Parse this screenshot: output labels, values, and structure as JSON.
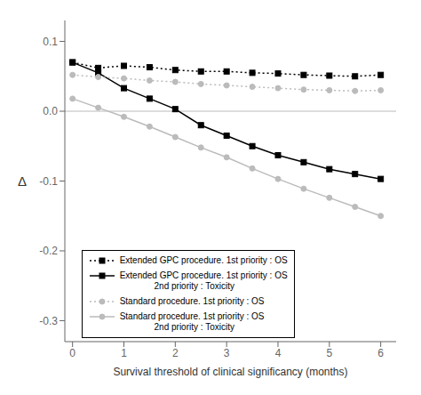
{
  "chart_data": {
    "type": "line",
    "xlabel": "Survival threshold of clinical significancy (months)",
    "ylabel": "Δ",
    "x": [
      0,
      0.5,
      1,
      1.5,
      2,
      2.5,
      3,
      3.5,
      4,
      4.5,
      5,
      5.5,
      6
    ],
    "series": [
      {
        "name": "Extended GPC procedure. 1st priority : OS",
        "color": "black",
        "marker": "square",
        "line_style": "dotted",
        "values": [
          0.07,
          0.062,
          0.065,
          0.063,
          0.059,
          0.057,
          0.057,
          0.055,
          0.054,
          0.052,
          0.051,
          0.05,
          0.052
        ]
      },
      {
        "name": "Extended GPC procedure. 1st priority : OS\n              2nd priority : Toxicity",
        "color": "black",
        "marker": "square",
        "line_style": "solid",
        "values": [
          0.07,
          0.055,
          0.033,
          0.018,
          0.003,
          -0.02,
          -0.035,
          -0.05,
          -0.063,
          -0.073,
          -0.083,
          -0.09,
          -0.097
        ]
      },
      {
        "name": "Standard procedure. 1st priority : OS",
        "color": "#bbbbbb",
        "marker": "circle",
        "line_style": "dotted",
        "values": [
          0.052,
          0.049,
          0.047,
          0.044,
          0.042,
          0.039,
          0.037,
          0.035,
          0.033,
          0.031,
          0.03,
          0.029,
          0.03
        ]
      },
      {
        "name": "Standard procedure. 1st priority : OS\n              2nd priority : Toxicity",
        "color": "#bbbbbb",
        "marker": "circle",
        "line_style": "solid",
        "values": [
          0.018,
          0.005,
          -0.008,
          -0.022,
          -0.037,
          -0.052,
          -0.066,
          -0.082,
          -0.097,
          -0.111,
          -0.124,
          -0.137,
          -0.15
        ]
      }
    ],
    "xlim": [
      -0.15,
      6.3
    ],
    "ylim": [
      -0.33,
      0.13
    ],
    "xticks": [
      0,
      1,
      2,
      3,
      4,
      5,
      6
    ],
    "yticks": [
      0.1,
      {
        "value": 0,
        "label": "0.0"
      },
      -0.1,
      -0.2,
      -0.3
    ],
    "reference_line": {
      "y": 0.0,
      "color": "#bbbbbb"
    },
    "legend": "lower left"
  }
}
